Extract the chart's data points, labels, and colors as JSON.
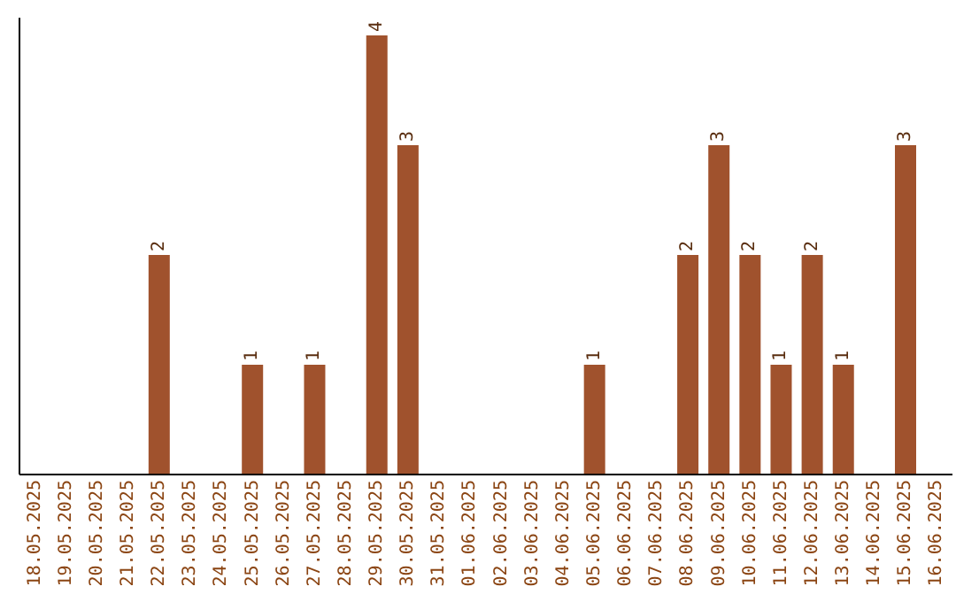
{
  "chart_data": {
    "type": "bar",
    "categories": [
      "18.05.2025",
      "19.05.2025",
      "20.05.2025",
      "21.05.2025",
      "22.05.2025",
      "23.05.2025",
      "24.05.2025",
      "25.05.2025",
      "26.05.2025",
      "27.05.2025",
      "28.05.2025",
      "29.05.2025",
      "30.05.2025",
      "31.05.2025",
      "01.06.2025",
      "02.06.2025",
      "03.06.2025",
      "04.06.2025",
      "05.06.2025",
      "06.06.2025",
      "07.06.2025",
      "08.06.2025",
      "09.06.2025",
      "10.06.2025",
      "11.06.2025",
      "12.06.2025",
      "13.06.2025",
      "14.06.2025",
      "15.06.2025",
      "16.06.2025"
    ],
    "values": [
      0,
      0,
      0,
      0,
      2,
      0,
      0,
      1,
      0,
      1,
      0,
      4,
      3,
      0,
      0,
      0,
      0,
      0,
      1,
      0,
      0,
      2,
      3,
      2,
      1,
      2,
      1,
      0,
      3,
      0
    ],
    "value_labels": [
      null,
      null,
      null,
      null,
      "2",
      null,
      null,
      "1",
      null,
      "1",
      null,
      "4",
      "3",
      null,
      null,
      null,
      null,
      null,
      "1",
      null,
      null,
      "2",
      "3",
      "2",
      "1",
      "2",
      "1",
      null,
      "3",
      null
    ],
    "color": "#a0522d"
  }
}
